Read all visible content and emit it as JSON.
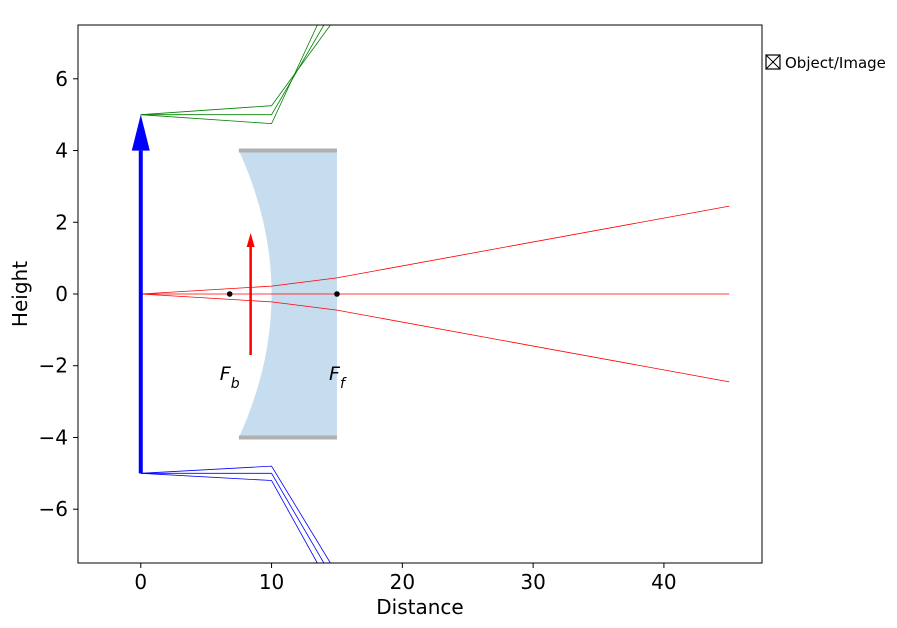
{
  "chart_data": {
    "type": "line",
    "title": "",
    "xlabel": "Distance",
    "ylabel": "Height",
    "xlim": [
      -4.8,
      47.5
    ],
    "ylim": [
      -7.5,
      7.5
    ],
    "xticks": [
      0,
      10,
      20,
      30,
      40
    ],
    "yticks": [
      6,
      4,
      2,
      0,
      -2,
      -4,
      -6
    ],
    "xtick_labels": [
      "0",
      "10",
      "20",
      "30",
      "40"
    ],
    "ytick_labels": [
      "6",
      "4",
      "2",
      "0",
      "−2",
      "−4",
      "−6"
    ],
    "grid": false,
    "legend": {
      "placement": "outside-right-top",
      "entries": [
        "Object/Image"
      ]
    },
    "object": {
      "x": 0,
      "y_bottom": -5,
      "y_top": 5,
      "color": "#0000ff"
    },
    "image": {
      "x": 8.4,
      "y_bottom": -1.7,
      "y_top": 1.7,
      "color": "#ff0000"
    },
    "lens": {
      "front_x": 7.5,
      "back_x": 15,
      "half_height": 4,
      "vertex_x": 10,
      "fill_color": "#c6ddf0",
      "aperture_color": "#b0b0b0"
    },
    "focal_points": [
      {
        "label": "F_b",
        "x": 6.8,
        "y": 0
      },
      {
        "label": "F_f",
        "x": 15.0,
        "y": 0
      }
    ],
    "series": [
      {
        "color": "#ff0000",
        "x": [
          0,
          10,
          15,
          45
        ],
        "y": [
          0,
          0.22,
          0.45,
          2.45
        ]
      },
      {
        "color": "#ff0000",
        "x": [
          0,
          10,
          15,
          45
        ],
        "y": [
          0,
          0,
          0,
          0
        ]
      },
      {
        "color": "#ff0000",
        "x": [
          0,
          10,
          15,
          45
        ],
        "y": [
          0,
          -0.22,
          -0.45,
          -2.45
        ]
      },
      {
        "color": "#008000",
        "x": [
          0,
          10,
          14.5
        ],
        "y": [
          5,
          5.25,
          7.5
        ]
      },
      {
        "color": "#008000",
        "x": [
          0,
          10,
          14.0
        ],
        "y": [
          5,
          5.0,
          7.5
        ]
      },
      {
        "color": "#008000",
        "x": [
          0,
          10,
          13.5
        ],
        "y": [
          5,
          4.75,
          7.5
        ]
      },
      {
        "color": "#0000ff",
        "x": [
          0,
          10,
          14.5
        ],
        "y": [
          -5,
          -4.8,
          -7.5
        ]
      },
      {
        "color": "#0000ff",
        "x": [
          0,
          10,
          14.0
        ],
        "y": [
          -5,
          -5.0,
          -7.5
        ]
      },
      {
        "color": "#0000ff",
        "x": [
          0,
          10,
          13.5
        ],
        "y": [
          -5,
          -5.2,
          -7.5
        ]
      }
    ]
  }
}
